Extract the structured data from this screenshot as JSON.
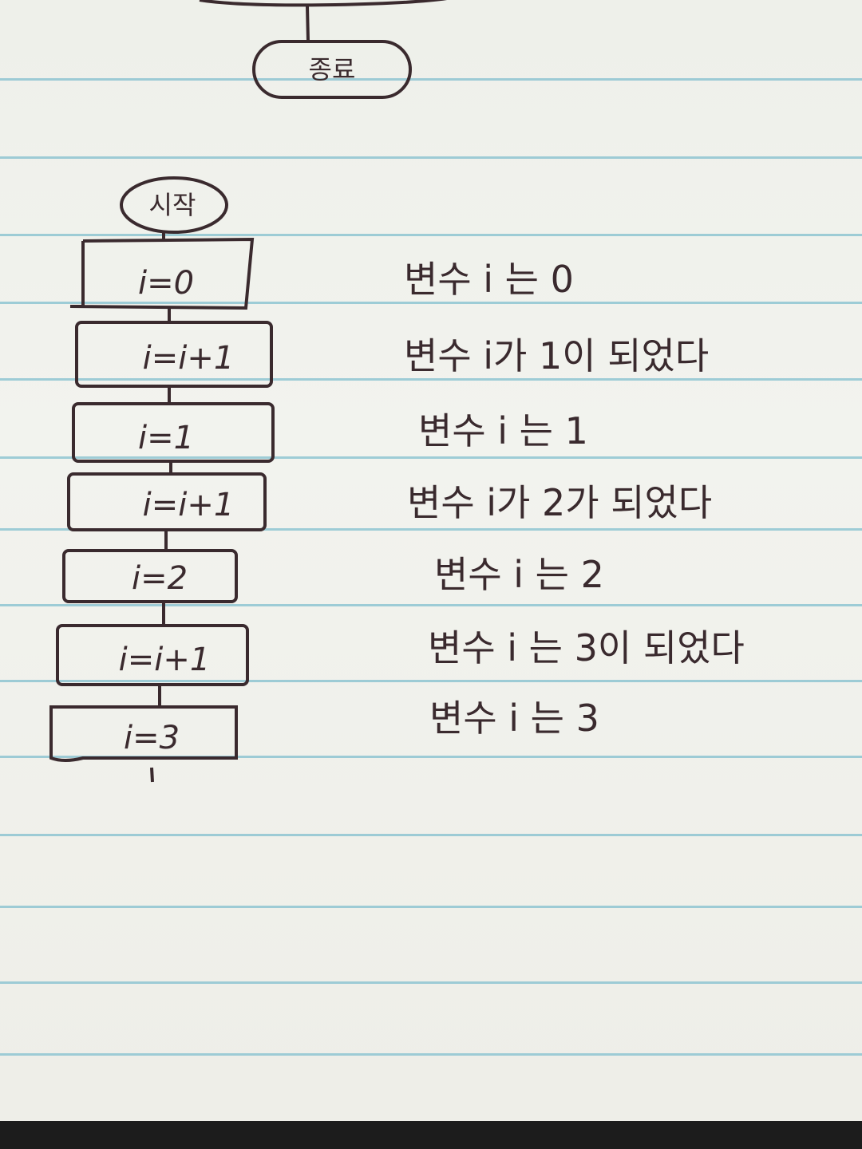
{
  "terminals": {
    "end": "종료",
    "start": "시작"
  },
  "steps": [
    {
      "node": "i=0",
      "note": "변수 i 는 0"
    },
    {
      "node": "i=i+1",
      "note": "변수 i가 1이 되었다"
    },
    {
      "node": "i=1",
      "note": "변수 i 는 1"
    },
    {
      "node": "i=i+1",
      "note": "변수 i가 2가 되었다"
    },
    {
      "node": "i=2",
      "note": "변수 i 는 2"
    },
    {
      "node": "i=i+1",
      "note": "변수 i 는 3이 되었다"
    },
    {
      "node": "i=3",
      "note": "변수 i 는 3"
    }
  ],
  "colors": {
    "ink": "#3a2a2e",
    "paper": "#f1f2ed",
    "ruling": "#88c2d0",
    "table": "#1c1c1c"
  }
}
